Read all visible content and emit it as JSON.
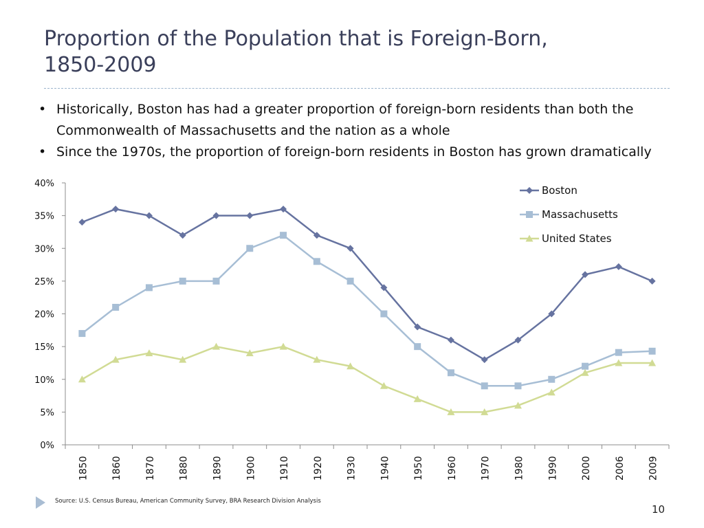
{
  "slide": {
    "title_line1": "Proportion of the Population that is Foreign-Born,",
    "title_line2": "1850-2009",
    "bullets": [
      "Historically, Boston has had a greater proportion of foreign-born residents than both the Commonwealth of Massachusetts and the nation as a whole",
      "Since the 1970s, the proportion of foreign-born residents in Boston has grown dramatically"
    ],
    "bullet_glyph": "•",
    "source": "Source: U.S. Census Bureau, American Community Survey, BRA Research Division Analysis",
    "page_number": "10"
  },
  "chart_data": {
    "type": "line",
    "title": "",
    "xlabel": "",
    "ylabel": "",
    "categories": [
      "1850",
      "1860",
      "1870",
      "1880",
      "1890",
      "1900",
      "1910",
      "1920",
      "1930",
      "1940",
      "1950",
      "1960",
      "1970",
      "1980",
      "1990",
      "2000",
      "2006",
      "2009"
    ],
    "ylim": [
      0,
      40
    ],
    "yticks": [
      "0%",
      "5%",
      "10%",
      "15%",
      "20%",
      "25%",
      "30%",
      "35%",
      "40%"
    ],
    "ytick_values": [
      0,
      5,
      10,
      15,
      20,
      25,
      30,
      35,
      40
    ],
    "grid": false,
    "legend_position": "top-right",
    "series": [
      {
        "name": "Boston",
        "marker": "diamond",
        "color": "#6673a0",
        "values": [
          34,
          36,
          35,
          32,
          35,
          35,
          36,
          32,
          30,
          24,
          18,
          16,
          13,
          16,
          20,
          26,
          27.2,
          25
        ]
      },
      {
        "name": "Massachusetts",
        "marker": "square",
        "color": "#a7bed5",
        "values": [
          17,
          21,
          24,
          25,
          25,
          30,
          32,
          28,
          25,
          20,
          15,
          11,
          9,
          9,
          10,
          12,
          14.1,
          14.3
        ]
      },
      {
        "name": "United States",
        "marker": "triangle",
        "color": "#d1db94",
        "values": [
          10,
          13,
          14,
          13,
          15,
          14,
          15,
          13,
          12,
          9,
          7,
          5,
          5,
          6,
          8,
          11,
          12.5,
          12.5
        ]
      }
    ]
  }
}
